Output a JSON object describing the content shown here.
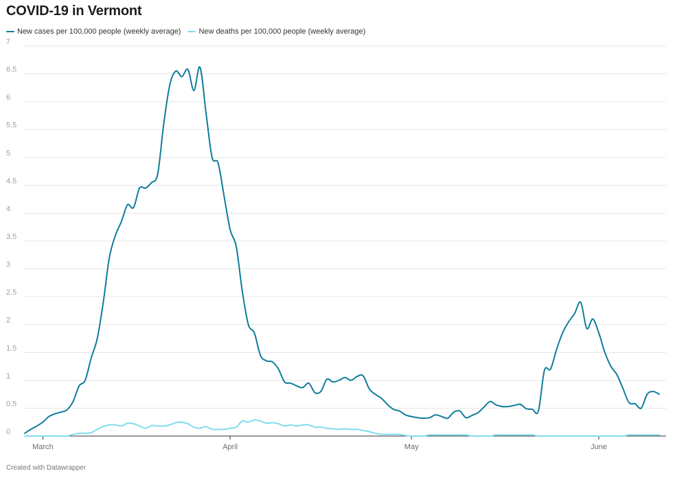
{
  "header": {
    "title": "COVID-19 in Vermont"
  },
  "footer": {
    "credit": "Created with Datawrapper"
  },
  "colors": {
    "cases": "#0e7c9a",
    "deaths": "#7fdcef",
    "grid": "#e6e6e6"
  },
  "chart_data": {
    "type": "line",
    "title": "COVID-19 in Vermont",
    "xlabel": "",
    "ylabel": "",
    "ylim": [
      0,
      7
    ],
    "y_ticks": [
      "0",
      "0.5",
      "1",
      "1.5",
      "2",
      "2.5",
      "3",
      "3.5",
      "4",
      "4.5",
      "5",
      "5.5",
      "6",
      "6.5",
      "7"
    ],
    "x_ticks": [
      {
        "label": "March",
        "date": "2020-03-01"
      },
      {
        "label": "April",
        "date": "2020-04-01"
      },
      {
        "label": "May",
        "date": "2020-05-01"
      },
      {
        "label": "June",
        "date": "2020-06-01"
      }
    ],
    "grid": true,
    "legend": "top-left",
    "series": [
      {
        "name": "New cases per 100,000 people (weekly average)",
        "points": [
          [
            "2020-02-27",
            0.05
          ],
          [
            "2020-02-28",
            0.12
          ],
          [
            "2020-02-29",
            0.18
          ],
          [
            "2020-03-01",
            0.25
          ],
          [
            "2020-03-02",
            0.35
          ],
          [
            "2020-03-03",
            0.4
          ],
          [
            "2020-03-04",
            0.43
          ],
          [
            "2020-03-05",
            0.47
          ],
          [
            "2020-03-06",
            0.62
          ],
          [
            "2020-03-07",
            0.9
          ],
          [
            "2020-03-08",
            1.0
          ],
          [
            "2020-03-09",
            1.4
          ],
          [
            "2020-03-10",
            1.75
          ],
          [
            "2020-03-11",
            2.4
          ],
          [
            "2020-03-12",
            3.2
          ],
          [
            "2020-03-13",
            3.6
          ],
          [
            "2020-03-14",
            3.85
          ],
          [
            "2020-03-15",
            4.15
          ],
          [
            "2020-03-16",
            4.1
          ],
          [
            "2020-03-17",
            4.45
          ],
          [
            "2020-03-18",
            4.45
          ],
          [
            "2020-03-19",
            4.55
          ],
          [
            "2020-03-20",
            4.7
          ],
          [
            "2020-03-21",
            5.6
          ],
          [
            "2020-03-22",
            6.3
          ],
          [
            "2020-03-23",
            6.55
          ],
          [
            "2020-03-24",
            6.45
          ],
          [
            "2020-03-25",
            6.58
          ],
          [
            "2020-03-26",
            6.2
          ],
          [
            "2020-03-27",
            6.62
          ],
          [
            "2020-03-28",
            5.8
          ],
          [
            "2020-03-29",
            5.0
          ],
          [
            "2020-03-30",
            4.9
          ],
          [
            "2020-03-31",
            4.3
          ],
          [
            "2020-04-01",
            3.7
          ],
          [
            "2020-04-02",
            3.4
          ],
          [
            "2020-04-03",
            2.6
          ],
          [
            "2020-04-04",
            2.0
          ],
          [
            "2020-04-05",
            1.85
          ],
          [
            "2020-04-06",
            1.45
          ],
          [
            "2020-04-07",
            1.35
          ],
          [
            "2020-04-08",
            1.33
          ],
          [
            "2020-04-09",
            1.2
          ],
          [
            "2020-04-10",
            0.97
          ],
          [
            "2020-04-11",
            0.95
          ],
          [
            "2020-04-12",
            0.9
          ],
          [
            "2020-04-13",
            0.87
          ],
          [
            "2020-04-14",
            0.95
          ],
          [
            "2020-04-15",
            0.78
          ],
          [
            "2020-04-16",
            0.8
          ],
          [
            "2020-04-17",
            1.02
          ],
          [
            "2020-04-18",
            0.97
          ],
          [
            "2020-04-19",
            1.0
          ],
          [
            "2020-04-20",
            1.05
          ],
          [
            "2020-04-21",
            1.0
          ],
          [
            "2020-04-22",
            1.07
          ],
          [
            "2020-04-23",
            1.08
          ],
          [
            "2020-04-24",
            0.85
          ],
          [
            "2020-04-25",
            0.75
          ],
          [
            "2020-04-26",
            0.68
          ],
          [
            "2020-04-27",
            0.57
          ],
          [
            "2020-04-28",
            0.48
          ],
          [
            "2020-04-29",
            0.45
          ],
          [
            "2020-04-30",
            0.38
          ],
          [
            "2020-05-01",
            0.35
          ],
          [
            "2020-05-02",
            0.33
          ],
          [
            "2020-05-03",
            0.32
          ],
          [
            "2020-05-04",
            0.33
          ],
          [
            "2020-05-05",
            0.38
          ],
          [
            "2020-05-06",
            0.35
          ],
          [
            "2020-05-07",
            0.32
          ],
          [
            "2020-05-08",
            0.43
          ],
          [
            "2020-05-09",
            0.45
          ],
          [
            "2020-05-10",
            0.33
          ],
          [
            "2020-05-11",
            0.37
          ],
          [
            "2020-05-12",
            0.42
          ],
          [
            "2020-05-13",
            0.52
          ],
          [
            "2020-05-14",
            0.62
          ],
          [
            "2020-05-15",
            0.56
          ],
          [
            "2020-05-16",
            0.53
          ],
          [
            "2020-05-17",
            0.53
          ],
          [
            "2020-05-18",
            0.55
          ],
          [
            "2020-05-19",
            0.57
          ],
          [
            "2020-05-20",
            0.49
          ],
          [
            "2020-05-21",
            0.48
          ],
          [
            "2020-05-22",
            0.45
          ],
          [
            "2020-05-23",
            1.18
          ],
          [
            "2020-05-24",
            1.2
          ],
          [
            "2020-05-25",
            1.55
          ],
          [
            "2020-05-26",
            1.85
          ],
          [
            "2020-05-27",
            2.05
          ],
          [
            "2020-05-28",
            2.2
          ],
          [
            "2020-05-29",
            2.4
          ],
          [
            "2020-05-30",
            1.93
          ],
          [
            "2020-05-31",
            2.1
          ],
          [
            "2020-06-01",
            1.85
          ],
          [
            "2020-06-02",
            1.5
          ],
          [
            "2020-06-03",
            1.25
          ],
          [
            "2020-06-04",
            1.1
          ],
          [
            "2020-06-05",
            0.85
          ],
          [
            "2020-06-06",
            0.6
          ],
          [
            "2020-06-07",
            0.58
          ],
          [
            "2020-06-08",
            0.5
          ],
          [
            "2020-06-09",
            0.75
          ],
          [
            "2020-06-10",
            0.8
          ],
          [
            "2020-06-11",
            0.75
          ]
        ]
      },
      {
        "name": "New deaths per 100,000 people (weekly average)",
        "points": [
          [
            "2020-02-27",
            0.0
          ],
          [
            "2020-02-28",
            0.0
          ],
          [
            "2020-02-29",
            0.0
          ],
          [
            "2020-03-01",
            0.0
          ],
          [
            "2020-03-02",
            0.0
          ],
          [
            "2020-03-03",
            0.0
          ],
          [
            "2020-03-04",
            0.0
          ],
          [
            "2020-03-05",
            0.0
          ],
          [
            "2020-03-06",
            0.03
          ],
          [
            "2020-03-07",
            0.05
          ],
          [
            "2020-03-08",
            0.05
          ],
          [
            "2020-03-09",
            0.06
          ],
          [
            "2020-03-10",
            0.12
          ],
          [
            "2020-03-11",
            0.17
          ],
          [
            "2020-03-12",
            0.2
          ],
          [
            "2020-03-13",
            0.2
          ],
          [
            "2020-03-14",
            0.18
          ],
          [
            "2020-03-15",
            0.23
          ],
          [
            "2020-03-16",
            0.22
          ],
          [
            "2020-03-17",
            0.18
          ],
          [
            "2020-03-18",
            0.14
          ],
          [
            "2020-03-19",
            0.19
          ],
          [
            "2020-03-20",
            0.18
          ],
          [
            "2020-03-21",
            0.18
          ],
          [
            "2020-03-22",
            0.2
          ],
          [
            "2020-03-23",
            0.24
          ],
          [
            "2020-03-24",
            0.25
          ],
          [
            "2020-03-25",
            0.22
          ],
          [
            "2020-03-26",
            0.16
          ],
          [
            "2020-03-27",
            0.14
          ],
          [
            "2020-03-28",
            0.17
          ],
          [
            "2020-03-29",
            0.12
          ],
          [
            "2020-03-30",
            0.12
          ],
          [
            "2020-03-31",
            0.12
          ],
          [
            "2020-04-01",
            0.14
          ],
          [
            "2020-04-02",
            0.16
          ],
          [
            "2020-04-03",
            0.27
          ],
          [
            "2020-04-04",
            0.25
          ],
          [
            "2020-04-05",
            0.29
          ],
          [
            "2020-04-06",
            0.27
          ],
          [
            "2020-04-07",
            0.23
          ],
          [
            "2020-04-08",
            0.24
          ],
          [
            "2020-04-09",
            0.22
          ],
          [
            "2020-04-10",
            0.18
          ],
          [
            "2020-04-11",
            0.2
          ],
          [
            "2020-04-12",
            0.18
          ],
          [
            "2020-04-13",
            0.2
          ],
          [
            "2020-04-14",
            0.2
          ],
          [
            "2020-04-15",
            0.16
          ],
          [
            "2020-04-16",
            0.16
          ],
          [
            "2020-04-17",
            0.14
          ],
          [
            "2020-04-18",
            0.13
          ],
          [
            "2020-04-19",
            0.12
          ],
          [
            "2020-04-20",
            0.13
          ],
          [
            "2020-04-21",
            0.12
          ],
          [
            "2020-04-22",
            0.12
          ],
          [
            "2020-04-23",
            0.1
          ],
          [
            "2020-04-24",
            0.08
          ],
          [
            "2020-04-25",
            0.05
          ],
          [
            "2020-04-26",
            0.03
          ],
          [
            "2020-04-27",
            0.03
          ],
          [
            "2020-04-28",
            0.03
          ],
          [
            "2020-04-29",
            0.03
          ],
          [
            "2020-04-30",
            0.01
          ],
          [
            "2020-05-01",
            0.0
          ],
          [
            "2020-05-02",
            0.0
          ],
          [
            "2020-05-03",
            0.0
          ],
          [
            "2020-05-04",
            0.02
          ],
          [
            "2020-05-05",
            0.02
          ],
          [
            "2020-05-06",
            0.02
          ],
          [
            "2020-05-07",
            0.02
          ],
          [
            "2020-05-08",
            0.02
          ],
          [
            "2020-05-09",
            0.02
          ],
          [
            "2020-05-10",
            0.02
          ],
          [
            "2020-05-11",
            0.0
          ],
          [
            "2020-05-12",
            0.0
          ],
          [
            "2020-05-13",
            0.0
          ],
          [
            "2020-05-14",
            0.0
          ],
          [
            "2020-05-15",
            0.02
          ],
          [
            "2020-05-16",
            0.02
          ],
          [
            "2020-05-17",
            0.02
          ],
          [
            "2020-05-18",
            0.02
          ],
          [
            "2020-05-19",
            0.02
          ],
          [
            "2020-05-20",
            0.02
          ],
          [
            "2020-05-21",
            0.02
          ],
          [
            "2020-05-22",
            0.0
          ],
          [
            "2020-05-23",
            0.0
          ],
          [
            "2020-05-24",
            0.0
          ],
          [
            "2020-05-25",
            0.0
          ],
          [
            "2020-05-26",
            0.0
          ],
          [
            "2020-05-27",
            0.0
          ],
          [
            "2020-05-28",
            0.0
          ],
          [
            "2020-05-29",
            0.0
          ],
          [
            "2020-05-30",
            0.0
          ],
          [
            "2020-05-31",
            0.0
          ],
          [
            "2020-06-01",
            0.0
          ],
          [
            "2020-06-02",
            0.0
          ],
          [
            "2020-06-03",
            0.0
          ],
          [
            "2020-06-04",
            0.0
          ],
          [
            "2020-06-05",
            0.0
          ],
          [
            "2020-06-06",
            0.02
          ],
          [
            "2020-06-07",
            0.02
          ],
          [
            "2020-06-08",
            0.02
          ],
          [
            "2020-06-09",
            0.02
          ],
          [
            "2020-06-10",
            0.02
          ],
          [
            "2020-06-11",
            0.02
          ]
        ]
      }
    ]
  }
}
